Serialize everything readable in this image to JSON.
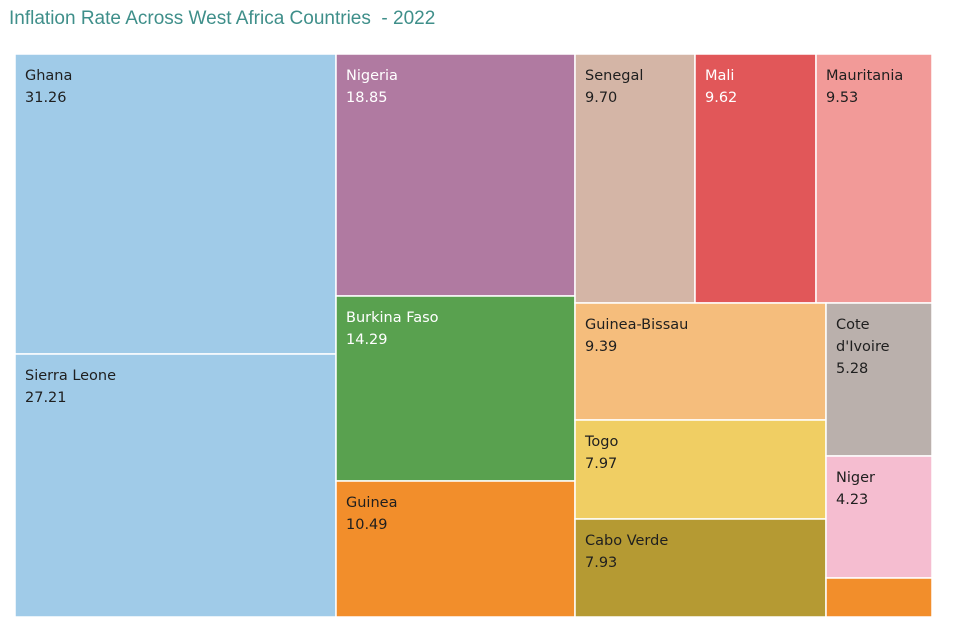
{
  "chart_data": {
    "type": "treemap",
    "title": "Inflation Rate Across West Africa Countries  - 2022",
    "items": [
      {
        "name": "Ghana",
        "value": 31.26,
        "value_label": "31.26",
        "color": "#a0cbe8",
        "text_color": "#1f1f1f"
      },
      {
        "name": "Sierra Leone",
        "value": 27.21,
        "value_label": "27.21",
        "color": "#a0cbe8",
        "text_color": "#1f1f1f"
      },
      {
        "name": "Nigeria",
        "value": 18.85,
        "value_label": "18.85",
        "color": "#b07aa1",
        "text_color": "#ffffff"
      },
      {
        "name": "Burkina Faso",
        "value": 14.29,
        "value_label": "14.29",
        "color": "#59a14f",
        "text_color": "#ffffff"
      },
      {
        "name": "Guinea",
        "value": 10.49,
        "value_label": "10.49",
        "color": "#f28e2b",
        "text_color": "#1f1f1f"
      },
      {
        "name": "Senegal",
        "value": 9.7,
        "value_label": "9.70",
        "color": "#d4b5a6",
        "text_color": "#1f1f1f"
      },
      {
        "name": "Mali",
        "value": 9.62,
        "value_label": "9.62",
        "color": "#e15759",
        "text_color": "#ffffff"
      },
      {
        "name": "Mauritania",
        "value": 9.53,
        "value_label": "9.53",
        "color": "#f29a98",
        "text_color": "#1f1f1f"
      },
      {
        "name": "Guinea-Bissau",
        "value": 9.39,
        "value_label": "9.39",
        "color": "#f5bd7c",
        "text_color": "#1f1f1f"
      },
      {
        "name": "Togo",
        "value": 7.97,
        "value_label": "7.97",
        "color": "#f0ce63",
        "text_color": "#1f1f1f"
      },
      {
        "name": "Cabo Verde",
        "value": 7.93,
        "value_label": "7.93",
        "color": "#b59a33",
        "text_color": "#1f1f1f"
      },
      {
        "name": "Cote\nd'Ivoire",
        "value": 5.28,
        "value_label": "5.28",
        "color": "#bab0ac",
        "text_color": "#1f1f1f"
      },
      {
        "name": "Niger",
        "value": 4.23,
        "value_label": "4.23",
        "color": "#f5bdd0",
        "text_color": "#1f1f1f"
      },
      {
        "name": "",
        "value": 1.7,
        "value_label": "",
        "color": "#f28e2b",
        "text_color": "#1f1f1f"
      }
    ]
  }
}
